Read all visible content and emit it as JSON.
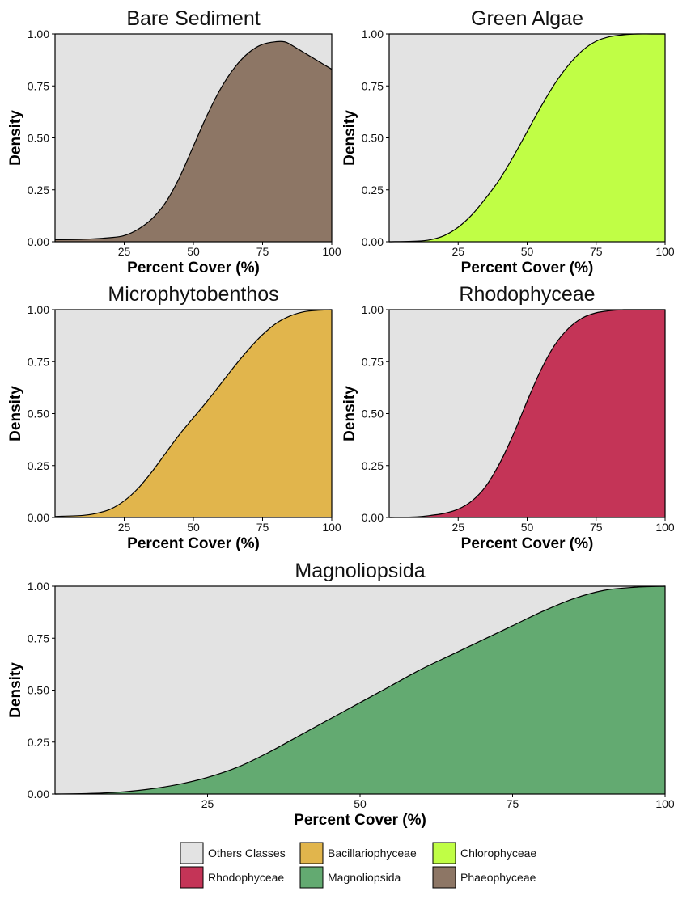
{
  "chart_data": [
    {
      "type": "area",
      "title": "Bare Sediment",
      "xlabel": "Percent Cover (%)",
      "ylabel": "Density",
      "xlim": [
        0,
        100
      ],
      "ylim": [
        0,
        1
      ],
      "xticks": [
        25,
        50,
        75,
        100
      ],
      "yticks": [
        0,
        0.25,
        0.5,
        0.75,
        1
      ],
      "xtick_labels": [
        "25",
        "50",
        "75",
        "100"
      ],
      "ytick_labels": [
        "0.00",
        "0.25",
        "0.50",
        "0.75",
        "1.00"
      ],
      "fill_class": "Phaeophyceae",
      "fill_color": "#8d7665",
      "background_class": "Others Classes",
      "background_color": "#e3e3e3",
      "x": [
        0,
        10,
        20,
        25,
        30,
        35,
        40,
        45,
        50,
        55,
        60,
        65,
        70,
        75,
        80,
        83,
        85,
        90,
        95,
        100
      ],
      "y": [
        0.01,
        0.012,
        0.02,
        0.03,
        0.06,
        0.11,
        0.19,
        0.31,
        0.46,
        0.61,
        0.74,
        0.84,
        0.91,
        0.95,
        0.963,
        0.962,
        0.95,
        0.91,
        0.87,
        0.83
      ]
    },
    {
      "type": "area",
      "title": "Green Algae",
      "xlabel": "Percent Cover (%)",
      "ylabel": "Density",
      "xlim": [
        0,
        100
      ],
      "ylim": [
        0,
        1
      ],
      "xticks": [
        25,
        50,
        75,
        100
      ],
      "yticks": [
        0,
        0.25,
        0.5,
        0.75,
        1
      ],
      "xtick_labels": [
        "25",
        "50",
        "75",
        "100"
      ],
      "ytick_labels": [
        "0.00",
        "0.25",
        "0.50",
        "0.75",
        "1.00"
      ],
      "fill_class": "Chlorophyceae",
      "fill_color": "#c0fe45",
      "background_class": "Others Classes",
      "background_color": "#e3e3e3",
      "x": [
        0,
        10,
        15,
        20,
        25,
        30,
        35,
        40,
        45,
        50,
        55,
        60,
        65,
        70,
        75,
        80,
        85,
        90,
        95,
        100
      ],
      "y": [
        0.0,
        0.003,
        0.01,
        0.03,
        0.07,
        0.13,
        0.21,
        0.3,
        0.41,
        0.53,
        0.65,
        0.76,
        0.85,
        0.92,
        0.965,
        0.987,
        0.996,
        1.0,
        1.0,
        1.0
      ]
    },
    {
      "type": "area",
      "title": "Microphytobenthos",
      "xlabel": "Percent Cover (%)",
      "ylabel": "Density",
      "xlim": [
        0,
        100
      ],
      "ylim": [
        0,
        1
      ],
      "xticks": [
        25,
        50,
        75,
        100
      ],
      "yticks": [
        0,
        0.25,
        0.5,
        0.75,
        1
      ],
      "xtick_labels": [
        "25",
        "50",
        "75",
        "100"
      ],
      "ytick_labels": [
        "0.00",
        "0.25",
        "0.50",
        "0.75",
        "1.00"
      ],
      "fill_class": "Bacillariophyceae",
      "fill_color": "#e1b54c",
      "background_class": "Others Classes",
      "background_color": "#e3e3e3",
      "x": [
        0,
        10,
        15,
        20,
        25,
        30,
        35,
        40,
        45,
        50,
        55,
        60,
        65,
        70,
        75,
        80,
        85,
        90,
        95,
        100
      ],
      "y": [
        0.005,
        0.01,
        0.02,
        0.04,
        0.08,
        0.14,
        0.22,
        0.31,
        0.4,
        0.48,
        0.56,
        0.645,
        0.73,
        0.81,
        0.88,
        0.935,
        0.97,
        0.99,
        0.997,
        1.0
      ]
    },
    {
      "type": "area",
      "title": "Rhodophyceae",
      "xlabel": "Percent Cover (%)",
      "ylabel": "Density",
      "xlim": [
        0,
        100
      ],
      "ylim": [
        0,
        1
      ],
      "xticks": [
        25,
        50,
        75,
        100
      ],
      "yticks": [
        0,
        0.25,
        0.5,
        0.75,
        1
      ],
      "xtick_labels": [
        "25",
        "50",
        "75",
        "100"
      ],
      "ytick_labels": [
        "0.00",
        "0.25",
        "0.50",
        "0.75",
        "1.00"
      ],
      "fill_class": "Rhodophyceae",
      "fill_color": "#c43457",
      "background_class": "Others Classes",
      "background_color": "#e3e3e3",
      "x": [
        0,
        10,
        15,
        20,
        25,
        30,
        35,
        40,
        45,
        50,
        55,
        60,
        65,
        70,
        75,
        80,
        85,
        90,
        95,
        100
      ],
      "y": [
        0.0,
        0.003,
        0.01,
        0.02,
        0.04,
        0.08,
        0.15,
        0.26,
        0.4,
        0.56,
        0.71,
        0.83,
        0.91,
        0.96,
        0.985,
        0.995,
        1.0,
        1.0,
        1.0,
        1.0
      ]
    },
    {
      "type": "area",
      "title": "Magnoliopsida",
      "xlabel": "Percent Cover (%)",
      "ylabel": "Density",
      "xlim": [
        0,
        100
      ],
      "ylim": [
        0,
        1
      ],
      "xticks": [
        25,
        50,
        75,
        100
      ],
      "yticks": [
        0,
        0.25,
        0.5,
        0.75,
        1
      ],
      "xtick_labels": [
        "25",
        "50",
        "75",
        "100"
      ],
      "ytick_labels": [
        "0.00",
        "0.25",
        "0.50",
        "0.75",
        "1.00"
      ],
      "fill_class": "Magnoliopsida",
      "fill_color": "#63aa71",
      "background_class": "Others Classes",
      "background_color": "#e3e3e3",
      "x": [
        0,
        5,
        10,
        15,
        20,
        25,
        30,
        35,
        40,
        45,
        50,
        55,
        60,
        65,
        70,
        75,
        80,
        85,
        90,
        95,
        100
      ],
      "y": [
        0.0,
        0.002,
        0.008,
        0.022,
        0.045,
        0.08,
        0.13,
        0.2,
        0.28,
        0.36,
        0.44,
        0.52,
        0.6,
        0.67,
        0.74,
        0.81,
        0.88,
        0.94,
        0.98,
        0.995,
        1.0
      ]
    }
  ],
  "legend": [
    {
      "label": "Others Classes",
      "color": "#e3e3e3"
    },
    {
      "label": "Bacillariophyceae",
      "color": "#e1b54c"
    },
    {
      "label": "Chlorophyceae",
      "color": "#c0fe45"
    },
    {
      "label": "Rhodophyceae",
      "color": "#c43457"
    },
    {
      "label": "Magnoliopsida",
      "color": "#63aa71"
    },
    {
      "label": "Phaeophyceae",
      "color": "#8d7665"
    }
  ]
}
